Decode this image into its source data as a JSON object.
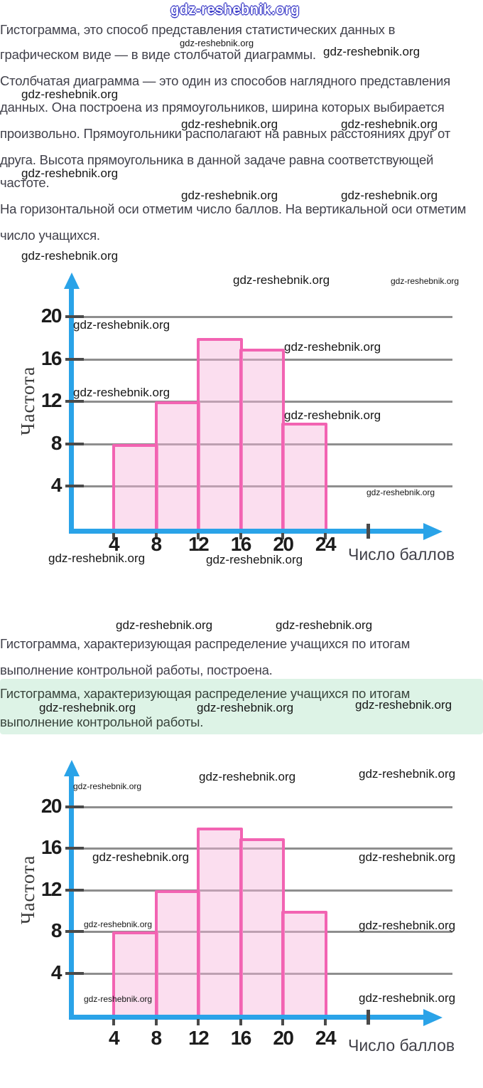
{
  "watermark": {
    "text": "gdz-reshebnik.org"
  },
  "colors": {
    "axis_blue": "#2aa3e8",
    "bar_border": "#f263b2",
    "bar_fill": "rgba(246,182,220,0.45)",
    "gridline": "#8e8e8e",
    "text_dark": "#41414b",
    "answer_box_bg": "#ddf3e6",
    "watermark_outline_blue": "#3d3dc8"
  },
  "intro": {
    "line1": "Гистограмма, это способ представления статистических данных в",
    "line2": "графическом виде — в виде столбчатой диаграммы.",
    "line3": "Столбчатая диаграмма — это один из способов наглядного представления",
    "line4": "данных. Она построена из прямоугольников, ширина которых выбирается",
    "line5": "произвольно. Прямоугольники располагают на равных расстояниях друг от",
    "line6": "друга. Высота прямоугольника в данной задаче равна соответствующей",
    "line7": "частоте.",
    "line8": "На горизонтальной оси отметим число баллов. На вертикальной оси отметим",
    "line9": "число учащихся."
  },
  "middle": {
    "line1": "Гистограмма, характеризующая распределение учащихся по итогам",
    "line2": "выполнение контрольной работы, построена."
  },
  "answer_box": {
    "line1": "Гистограмма, характеризующая распределение учащихся по итогам",
    "line2": "выполнение контрольной работы."
  },
  "chart_data": [
    {
      "type": "bar",
      "title": "",
      "ylabel": "Частота",
      "xlabel": "Число баллов",
      "bins": [
        4,
        8,
        12,
        16,
        20,
        24
      ],
      "categories": [
        "4–8",
        "8–12",
        "12–16",
        "16–20",
        "20–24"
      ],
      "values": [
        8,
        12,
        18,
        17,
        10
      ],
      "x_ticks": [
        4,
        8,
        12,
        16,
        20,
        24
      ],
      "extra_unlabeled_x_tick": 28,
      "y_gridlines": [
        4,
        8,
        12,
        16,
        20
      ],
      "ylim": [
        0,
        24
      ],
      "xlim": [
        0,
        28
      ],
      "grid": true,
      "legend": false
    },
    {
      "type": "bar",
      "title": "",
      "ylabel": "Частота",
      "xlabel": "Число баллов",
      "bins": [
        4,
        8,
        12,
        16,
        20,
        24
      ],
      "categories": [
        "4–8",
        "8–12",
        "12–16",
        "16–20",
        "20–24"
      ],
      "values": [
        8,
        12,
        18,
        17,
        10
      ],
      "x_ticks": [
        4,
        8,
        12,
        16,
        20,
        24
      ],
      "extra_unlabeled_x_tick": 28,
      "y_gridlines": [
        4,
        8,
        12,
        16,
        20
      ],
      "ylim": [
        0,
        24
      ],
      "xlim": [
        0,
        28
      ],
      "grid": true,
      "legend": false
    }
  ]
}
